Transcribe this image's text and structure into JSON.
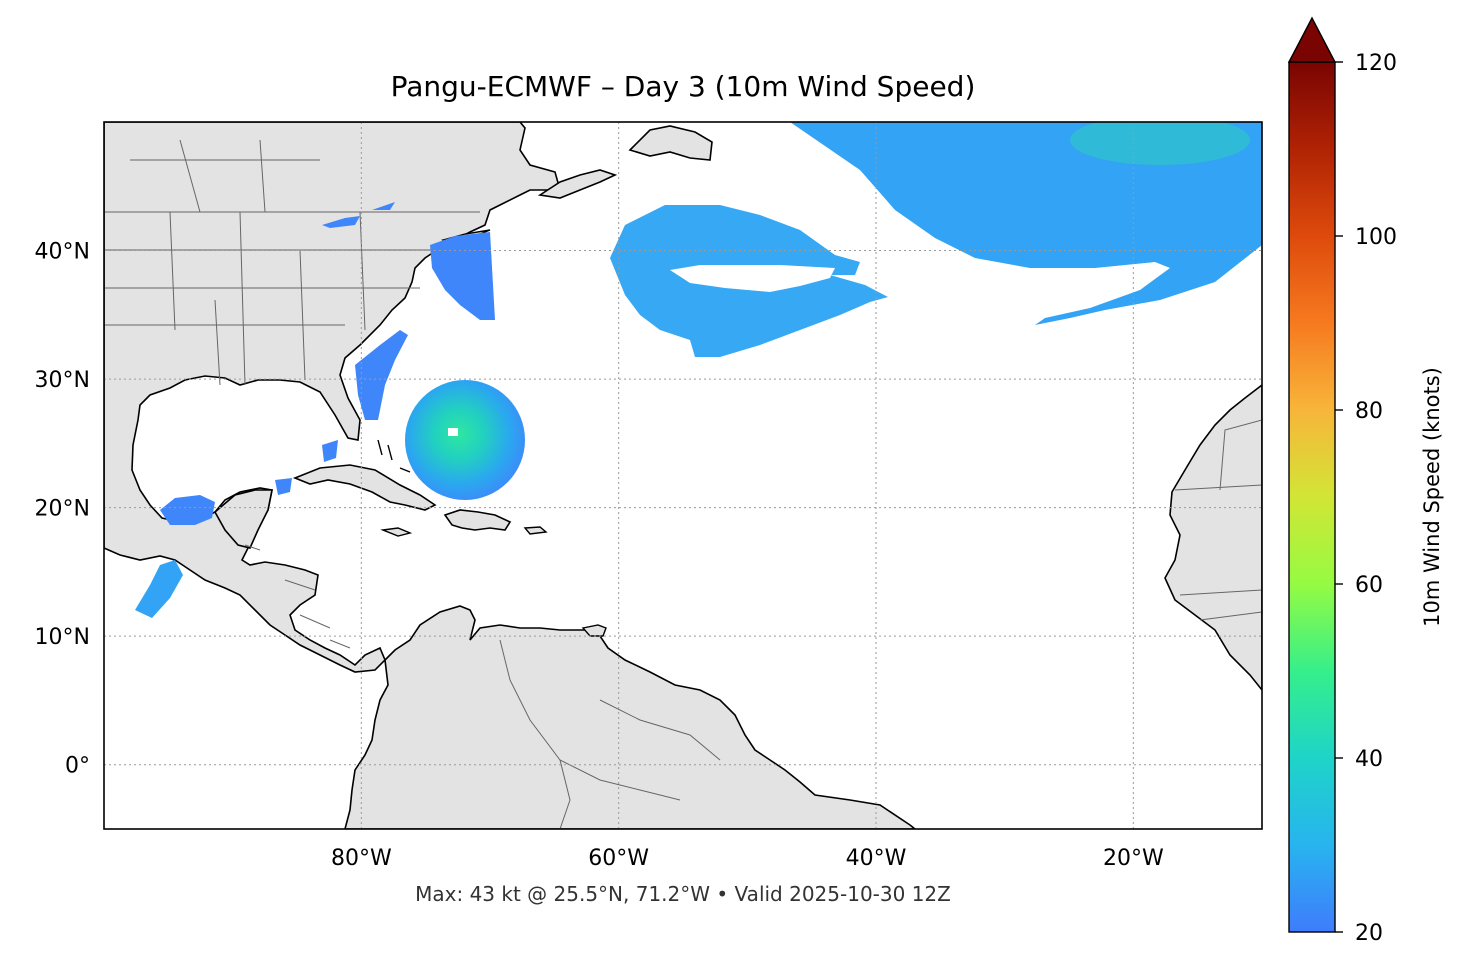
{
  "title": "Pangu-ECMWF – Day 3 (10m Wind Speed)",
  "subtitle": "Max: 43 kt @ 25.5°N, 71.2°W • Valid 2025-10-30 12Z",
  "map": {
    "lon_range": [
      -100,
      -10
    ],
    "lat_range": [
      -5,
      50
    ],
    "lat_ticks": [
      {
        "value": 40,
        "label": "40°N"
      },
      {
        "value": 30,
        "label": "30°N"
      },
      {
        "value": 20,
        "label": "20°N"
      },
      {
        "value": 10,
        "label": "10°N"
      },
      {
        "value": 0,
        "label": "0°"
      }
    ],
    "lon_ticks": [
      {
        "value": -80,
        "label": "80°W"
      },
      {
        "value": -60,
        "label": "60°W"
      },
      {
        "value": -40,
        "label": "40°W"
      },
      {
        "value": -20,
        "label": "20°W"
      }
    ],
    "gridlines": true,
    "land_color": "#e3e3e3",
    "ocean_color": "#ffffff",
    "coastline_color": "#000000",
    "border_color": "#666666"
  },
  "colorbar": {
    "label": "10m Wind Speed (knots)",
    "min": 20,
    "max": 120,
    "ticks": [
      20,
      40,
      60,
      80,
      100,
      120
    ],
    "extend": "max",
    "colormap": "turbo"
  },
  "max_wind": {
    "value_kt": 43,
    "lat": 25.5,
    "lon": -71.2
  }
}
